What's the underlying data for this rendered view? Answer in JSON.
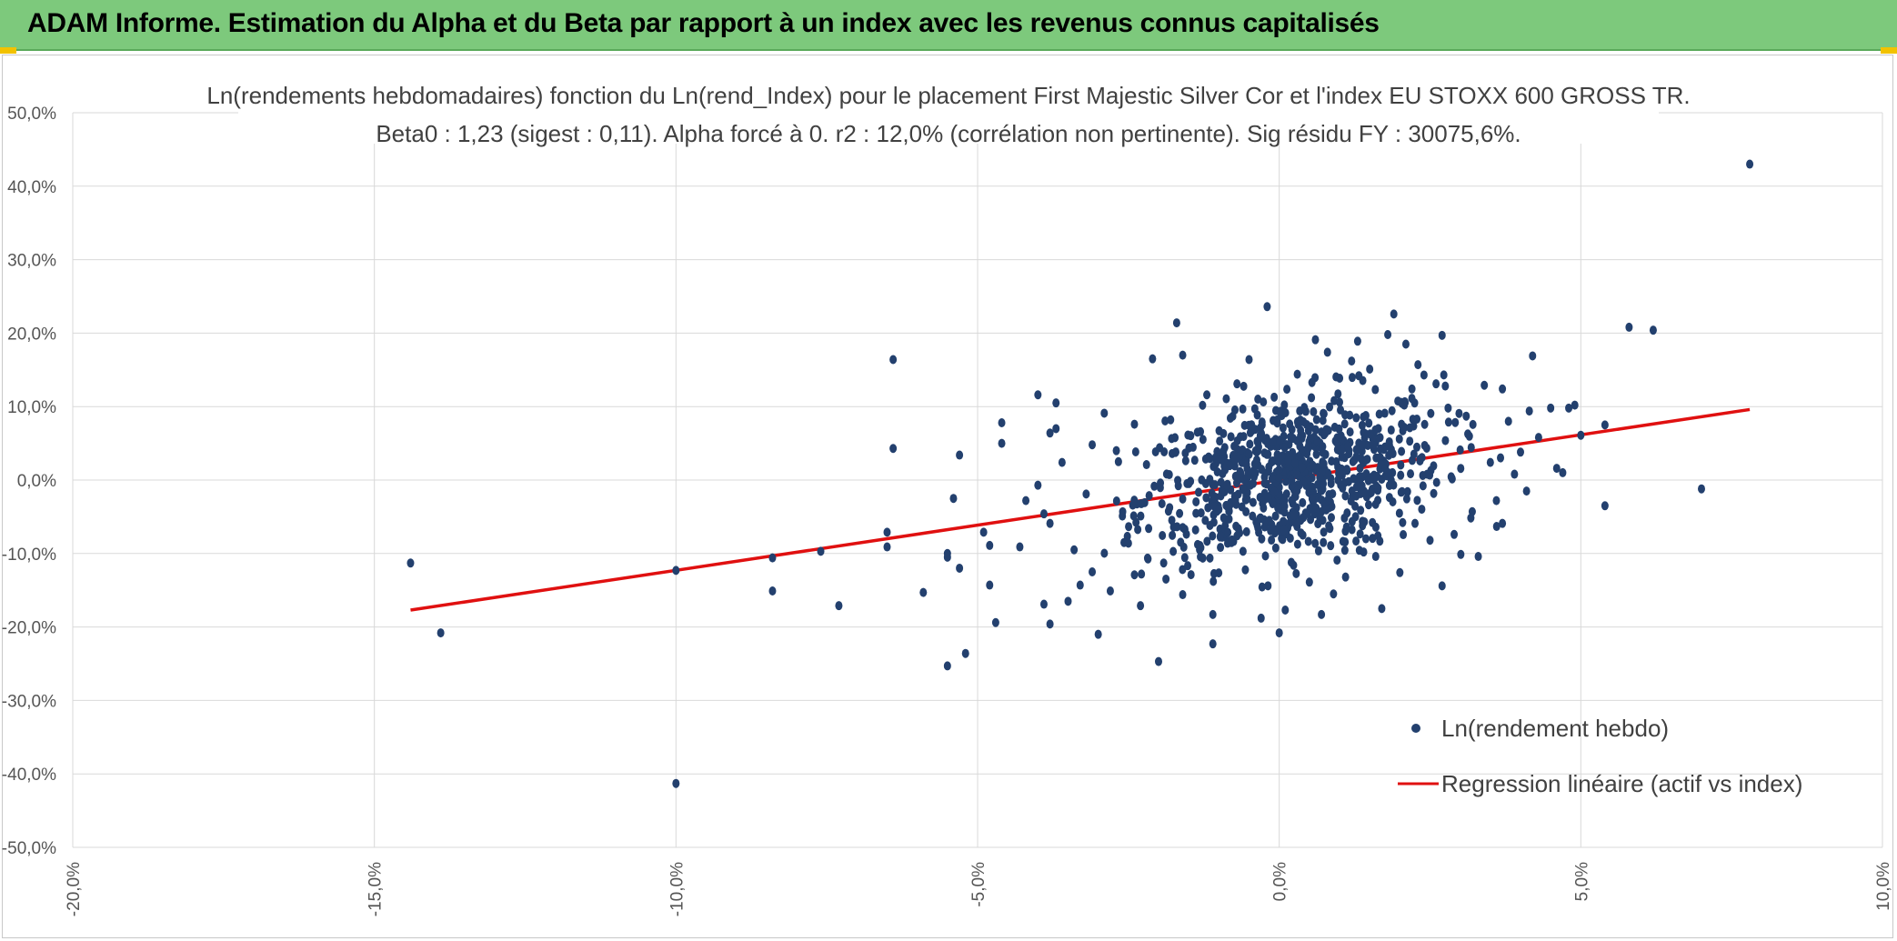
{
  "header": {
    "title": "ADAM Informe. Estimation du Alpha et du Beta par rapport à un index avec les revenus connus capitalisés",
    "colors": {
      "banner": "#7dc97c",
      "accent": "#f2c200"
    }
  },
  "chart_data": {
    "type": "scatter",
    "title": "Ln(rendements hebdomadaires) fonction du Ln(rend_Index) pour le placement First Majestic Silver Cor et l'index EU STOXX 600 GROSS TR.",
    "subtitle": "Beta0 : 1,23 (sigest : 0,11). Alpha forcé à 0. r2 : 12,0% (corrélation non pertinente). Sig résidu FY : 30075,6%.",
    "xlabel": "",
    "ylabel": "",
    "xlim": [
      -20,
      10
    ],
    "ylim": [
      -50,
      50
    ],
    "grid": true,
    "legend_position": "bottom-right",
    "x_ticks": [
      "-20,0%",
      "-15,0%",
      "-10,0%",
      "-5,0%",
      "0,0%",
      "5,0%",
      "10,0%"
    ],
    "y_ticks": [
      "50,0%",
      "40,0%",
      "30,0%",
      "20,0%",
      "10,0%",
      "0,0%",
      "-10,0%",
      "-20,0%",
      "-30,0%",
      "-40,0%",
      "-50,0%"
    ],
    "series": [
      {
        "name": "Ln(rendement hebdo)",
        "kind": "points",
        "color": "#23406e",
        "points": [
          [
            -14.4,
            -11.3
          ],
          [
            -13.9,
            -20.8
          ],
          [
            -10.0,
            -41.3
          ],
          [
            -10.0,
            -12.3
          ],
          [
            -8.4,
            -10.6
          ],
          [
            -8.4,
            -15.1
          ],
          [
            -7.6,
            -9.7
          ],
          [
            -7.3,
            -17.1
          ],
          [
            -6.5,
            -7.1
          ],
          [
            -6.5,
            -9.1
          ],
          [
            -6.4,
            16.4
          ],
          [
            -6.4,
            4.3
          ],
          [
            -5.9,
            -15.3
          ],
          [
            -5.5,
            -10.0
          ],
          [
            -5.5,
            -10.5
          ],
          [
            -5.5,
            -25.3
          ],
          [
            -5.4,
            -2.5
          ],
          [
            -5.3,
            3.4
          ],
          [
            -5.3,
            -12.0
          ],
          [
            -5.2,
            -23.6
          ],
          [
            -4.9,
            -7.1
          ],
          [
            -4.8,
            -8.9
          ],
          [
            -4.8,
            -14.3
          ],
          [
            -4.7,
            -19.4
          ],
          [
            -4.6,
            5.0
          ],
          [
            -4.6,
            7.8
          ],
          [
            -4.3,
            -9.1
          ],
          [
            -4.2,
            -2.8
          ],
          [
            -4.0,
            11.6
          ],
          [
            -4.0,
            -0.7
          ],
          [
            -3.9,
            -4.6
          ],
          [
            -3.9,
            -16.9
          ],
          [
            -3.8,
            6.4
          ],
          [
            -3.8,
            -5.9
          ],
          [
            -3.8,
            -19.6
          ],
          [
            -3.7,
            10.5
          ],
          [
            -3.7,
            7.0
          ],
          [
            -3.6,
            2.4
          ],
          [
            -3.5,
            -16.5
          ],
          [
            -3.4,
            -9.5
          ],
          [
            -3.3,
            -14.3
          ],
          [
            -3.2,
            -1.9
          ],
          [
            -3.1,
            4.8
          ],
          [
            -3.1,
            -12.5
          ],
          [
            -3.0,
            -21.0
          ],
          [
            -2.9,
            9.1
          ],
          [
            -2.8,
            -15.1
          ],
          [
            -2.7,
            4.0
          ],
          [
            -2.6,
            -4.9
          ],
          [
            -2.5,
            -8.6
          ],
          [
            -2.4,
            7.6
          ],
          [
            -2.4,
            -12.9
          ],
          [
            -2.3,
            -17.1
          ],
          [
            -2.2,
            2.1
          ],
          [
            -2.1,
            16.5
          ],
          [
            -2.0,
            -24.7
          ],
          [
            -1.8,
            8.2
          ],
          [
            -1.7,
            21.4
          ],
          [
            -1.6,
            -15.6
          ],
          [
            -1.6,
            17.0
          ],
          [
            -1.4,
            2.7
          ],
          [
            -1.3,
            -9.2
          ],
          [
            -1.2,
            11.6
          ],
          [
            -1.1,
            -22.3
          ],
          [
            -1.1,
            -18.3
          ],
          [
            -1.0,
            -4.0
          ],
          [
            -0.8,
            5.9
          ],
          [
            -0.7,
            13.1
          ],
          [
            -0.6,
            -9.7
          ],
          [
            -0.5,
            16.4
          ],
          [
            -0.4,
            6.9
          ],
          [
            -0.3,
            -18.8
          ],
          [
            -0.2,
            23.6
          ],
          [
            -0.1,
            8.1
          ],
          [
            0.0,
            -20.8
          ],
          [
            0.1,
            -17.7
          ],
          [
            0.2,
            -11.2
          ],
          [
            0.3,
            14.4
          ],
          [
            0.4,
            -5.1
          ],
          [
            0.5,
            -13.9
          ],
          [
            0.6,
            19.1
          ],
          [
            0.7,
            -18.3
          ],
          [
            0.8,
            17.4
          ],
          [
            0.9,
            -15.5
          ],
          [
            1.0,
            10.6
          ],
          [
            1.1,
            -13.2
          ],
          [
            1.2,
            16.2
          ],
          [
            1.3,
            18.9
          ],
          [
            1.4,
            -9.8
          ],
          [
            1.5,
            15.1
          ],
          [
            1.6,
            -10.4
          ],
          [
            1.7,
            -17.5
          ],
          [
            1.8,
            19.8
          ],
          [
            1.9,
            22.6
          ],
          [
            2.0,
            -12.6
          ],
          [
            2.1,
            18.5
          ],
          [
            2.3,
            15.7
          ],
          [
            2.4,
            14.3
          ],
          [
            2.5,
            -8.2
          ],
          [
            2.6,
            13.1
          ],
          [
            2.7,
            19.7
          ],
          [
            2.7,
            -14.4
          ],
          [
            2.8,
            9.8
          ],
          [
            2.9,
            -7.4
          ],
          [
            3.0,
            4.1
          ],
          [
            3.1,
            8.7
          ],
          [
            3.2,
            -4.3
          ],
          [
            3.3,
            -10.4
          ],
          [
            3.4,
            12.9
          ],
          [
            3.5,
            2.4
          ],
          [
            3.6,
            -2.8
          ],
          [
            3.7,
            -5.9
          ],
          [
            3.7,
            12.4
          ],
          [
            3.8,
            8.0
          ],
          [
            3.9,
            0.8
          ],
          [
            4.0,
            3.8
          ],
          [
            4.1,
            -1.5
          ],
          [
            4.2,
            16.9
          ],
          [
            4.3,
            5.8
          ],
          [
            4.5,
            9.8
          ],
          [
            4.6,
            1.6
          ],
          [
            4.7,
            1.0
          ],
          [
            4.8,
            9.8
          ],
          [
            4.9,
            10.2
          ],
          [
            5.0,
            6.1
          ],
          [
            5.4,
            7.5
          ],
          [
            5.4,
            -3.5
          ],
          [
            5.8,
            20.8
          ],
          [
            6.2,
            20.4
          ],
          [
            7.0,
            -1.2
          ],
          [
            7.8,
            43.0
          ]
        ]
      },
      {
        "name": "Regression linéaire (actif vs index)",
        "kind": "line",
        "color": "#e01010",
        "x": [
          -14.4,
          7.8
        ],
        "y": [
          -17.7,
          9.6
        ]
      }
    ]
  }
}
